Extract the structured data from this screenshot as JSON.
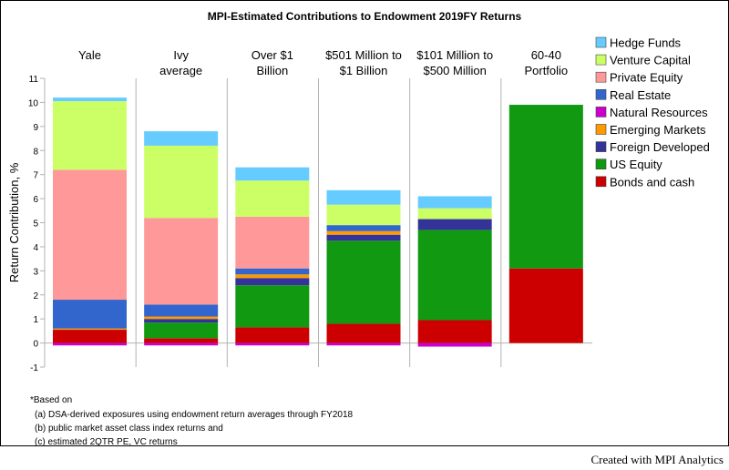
{
  "chart_data": {
    "type": "bar",
    "stacked": true,
    "title": "MPI-Estimated Contributions to Endowment 2019FY Returns",
    "ylabel": "Return Contribution, %",
    "xlabel": "",
    "ylim": [
      -1,
      11
    ],
    "yticks": [
      "-1",
      "0",
      "1",
      "2",
      "3",
      "4",
      "5",
      "6",
      "7",
      "8",
      "9",
      "10",
      "11"
    ],
    "grid": "vertical separators between categories",
    "legend_position": "top-right",
    "categories": [
      [
        "Yale"
      ],
      [
        "Ivy",
        "average"
      ],
      [
        "Over $1",
        "Billion"
      ],
      [
        "$501 Million to",
        "$1 Billion"
      ],
      [
        "$101 Million to",
        "$500 Million"
      ],
      [
        "60-40",
        "Portfolio"
      ]
    ],
    "series": [
      {
        "name": "Bonds and cash",
        "color": "#cc0000",
        "values": [
          0.55,
          0.2,
          0.65,
          0.8,
          0.95,
          3.1
        ]
      },
      {
        "name": "US Equity",
        "color": "#119911",
        "values": [
          0.0,
          0.65,
          1.75,
          3.45,
          3.75,
          6.8
        ]
      },
      {
        "name": "Foreign Developed",
        "color": "#333399",
        "values": [
          0.0,
          0.15,
          0.3,
          0.25,
          0.45,
          0.0
        ]
      },
      {
        "name": "Emerging Markets",
        "color": "#ff9900",
        "values": [
          0.05,
          0.1,
          0.15,
          0.15,
          0.0,
          0.0
        ]
      },
      {
        "name": "Natural Resources",
        "color": "#cc00cc",
        "values": [
          -0.1,
          -0.1,
          -0.1,
          -0.1,
          -0.15,
          0.0
        ]
      },
      {
        "name": "Real Estate",
        "color": "#3366cc",
        "values": [
          1.2,
          0.5,
          0.25,
          0.25,
          0.0,
          0.0
        ]
      },
      {
        "name": "Private Equity",
        "color": "#ff9999",
        "values": [
          5.4,
          3.6,
          2.15,
          0.0,
          0.0,
          0.0
        ]
      },
      {
        "name": "Venture Capital",
        "color": "#ccff66",
        "values": [
          2.85,
          3.0,
          1.5,
          0.85,
          0.45,
          0.0
        ]
      },
      {
        "name": "Hedge Funds",
        "color": "#66ccff",
        "values": [
          0.15,
          0.6,
          0.55,
          0.6,
          0.5,
          0.0
        ]
      }
    ],
    "legend_order": [
      "Hedge Funds",
      "Venture Capital",
      "Private Equity",
      "Real Estate",
      "Natural Resources",
      "Emerging Markets",
      "Foreign Developed",
      "US Equity",
      "Bonds and cash"
    ]
  },
  "footnotes": [
    "*Based on",
    "(a) DSA-derived exposures using endowment return averages through FY2018",
    "(b) public market asset class index returns and",
    "(c) estimated 2QTR PE, VC returns"
  ],
  "credit": "Created with MPI Analytics"
}
